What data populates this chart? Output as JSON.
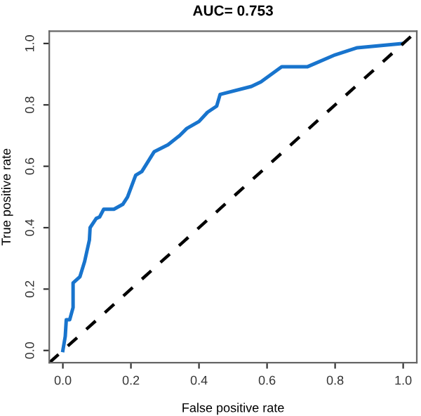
{
  "chart_data": {
    "type": "line",
    "title": "AUC= 0.753",
    "xlabel": "False positive rate",
    "ylabel": "True positive rate",
    "xlim": [
      -0.04,
      1.04
    ],
    "ylim": [
      -0.04,
      1.04
    ],
    "xticks": [
      {
        "value": 0,
        "label": "0.0"
      },
      0.2,
      0.4,
      0.6,
      0.8,
      {
        "value": 1,
        "label": "1.0"
      }
    ],
    "yticks": [
      {
        "value": 0,
        "label": "0.0"
      },
      0.2,
      0.4,
      0.6,
      0.8,
      {
        "value": 1,
        "label": "1.0"
      }
    ],
    "grid": false,
    "legend": false,
    "series": [
      {
        "color": "#1874cd",
        "line_style": "solid",
        "x": [
          0,
          0.007,
          0.01,
          0.02,
          0.03,
          0.03,
          0.05,
          0.064,
          0.078,
          0.08,
          0.098,
          0.108,
          0.12,
          0.15,
          0.176,
          0.19,
          0.214,
          0.232,
          0.268,
          0.309,
          0.343,
          0.364,
          0.4,
          0.425,
          0.452,
          0.462,
          0.554,
          0.582,
          0.643,
          0.718,
          0.8,
          0.865,
          0.997
        ],
        "values": [
          0,
          0.046,
          0.1,
          0.1,
          0.14,
          0.22,
          0.24,
          0.29,
          0.36,
          0.4,
          0.43,
          0.435,
          0.46,
          0.46,
          0.476,
          0.5,
          0.571,
          0.583,
          0.647,
          0.67,
          0.7,
          0.723,
          0.746,
          0.776,
          0.796,
          0.834,
          0.86,
          0.875,
          0.924,
          0.924,
          0.963,
          0.986,
          1.0
        ]
      },
      {
        "color": "#000000",
        "line_style": "dashed",
        "x": [
          -0.04,
          1.04
        ],
        "values": [
          -0.04,
          1.04
        ]
      }
    ]
  }
}
